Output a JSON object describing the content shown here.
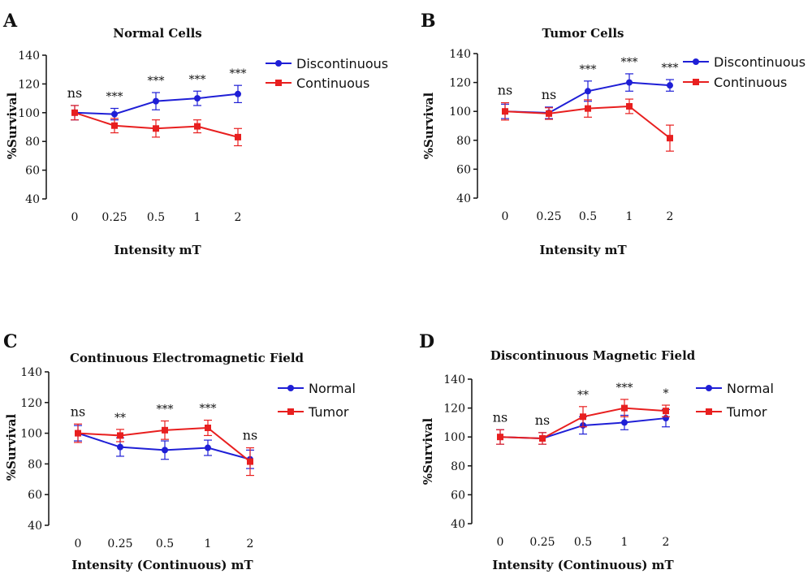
{
  "figure": {
    "colors": {
      "blue": "#1f1fd6",
      "red": "#e81f1f",
      "axis": "#111111"
    }
  },
  "chart_data": [
    {
      "panel": "A",
      "type": "line",
      "title": "Normal Cells",
      "xlabel": "Intensity mT",
      "ylabel": "%Survival",
      "categories": [
        "0",
        "0.25",
        "0.5",
        "1",
        "2"
      ],
      "ylim": [
        40,
        140
      ],
      "yticks": [
        40,
        60,
        80,
        100,
        120,
        140
      ],
      "legend_position": "top-right",
      "series": [
        {
          "name": "Discontinuous",
          "color": "#1f1fd6",
          "marker": "circle",
          "values": [
            100,
            99,
            108,
            110,
            113
          ],
          "errors": [
            5,
            4,
            6,
            5,
            6
          ]
        },
        {
          "name": "Continuous",
          "color": "#e81f1f",
          "marker": "square",
          "values": [
            100,
            91,
            89,
            90.5,
            83
          ],
          "errors": [
            5,
            5,
            6,
            4.5,
            6
          ]
        }
      ],
      "significance": [
        "ns",
        "***",
        "***",
        "***",
        "***"
      ]
    },
    {
      "panel": "B",
      "type": "line",
      "title": "Tumor Cells",
      "xlabel": "Intensity mT",
      "ylabel": "%Survival",
      "categories": [
        "0",
        "0.25",
        "0.5",
        "1",
        "2"
      ],
      "ylim": [
        40,
        140
      ],
      "yticks": [
        40,
        60,
        80,
        100,
        120,
        140
      ],
      "legend_position": "top-right",
      "series": [
        {
          "name": "Discontinuous",
          "color": "#1f1fd6",
          "marker": "circle",
          "values": [
            100,
            99,
            114,
            120,
            118
          ],
          "errors": [
            5,
            4,
            7,
            6,
            4
          ]
        },
        {
          "name": "Continuous",
          "color": "#e81f1f",
          "marker": "square",
          "values": [
            100,
            98.5,
            102,
            103.5,
            81.5
          ],
          "errors": [
            6,
            4,
            6,
            5,
            9
          ]
        }
      ],
      "significance": [
        "ns",
        "ns",
        "***",
        "***",
        "***"
      ]
    },
    {
      "panel": "C",
      "type": "line",
      "title": "Continuous Electromagnetic Field",
      "xlabel": "Intensity (Continuous) mT",
      "ylabel": "%Survival",
      "categories": [
        "0",
        "0.25",
        "0.5",
        "1",
        "2"
      ],
      "ylim": [
        40,
        140
      ],
      "yticks": [
        40,
        60,
        80,
        100,
        120,
        140
      ],
      "legend_position": "top-right",
      "series": [
        {
          "name": "Normal",
          "color": "#1f1fd6",
          "marker": "circle",
          "values": [
            100,
            91,
            89,
            90.5,
            83
          ],
          "errors": [
            5,
            6,
            6,
            5,
            6
          ]
        },
        {
          "name": "Tumor",
          "color": "#e81f1f",
          "marker": "square",
          "values": [
            100,
            98.5,
            102,
            103.5,
            81.5
          ],
          "errors": [
            6,
            4,
            6,
            5,
            9
          ]
        }
      ],
      "significance": [
        "ns",
        "**",
        "***",
        "***",
        "ns"
      ]
    },
    {
      "panel": "D",
      "type": "line",
      "title": "Discontinuous Magnetic Field",
      "xlabel": "Intensity (Continuous) mT",
      "ylabel": "%Survival",
      "categories": [
        "0",
        "0.25",
        "0.5",
        "1",
        "2"
      ],
      "ylim": [
        40,
        140
      ],
      "yticks": [
        40,
        60,
        80,
        100,
        120,
        140
      ],
      "legend_position": "top-right",
      "series": [
        {
          "name": "Normal",
          "color": "#1f1fd6",
          "marker": "circle",
          "values": [
            100,
            99,
            108,
            110,
            113
          ],
          "errors": [
            5,
            4,
            6,
            5,
            6
          ]
        },
        {
          "name": "Tumor",
          "color": "#e81f1f",
          "marker": "square",
          "values": [
            100,
            99,
            114,
            120,
            118
          ],
          "errors": [
            5,
            4,
            7,
            6,
            4
          ]
        }
      ],
      "significance": [
        "ns",
        "ns",
        "**",
        "***",
        "*"
      ]
    }
  ]
}
